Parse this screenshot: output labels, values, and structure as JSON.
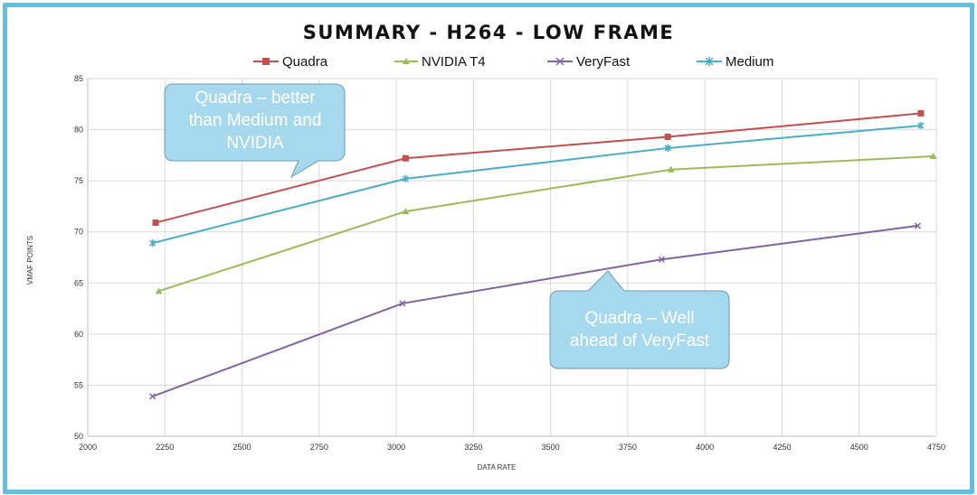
{
  "title": "SUMMARY - H264 - LOW FRAME",
  "colors": {
    "frame": "#62bfe1",
    "callout_fill": "#a7d9ee",
    "callout_stroke": "#6c9cb3",
    "grid": "#d9d9d9"
  },
  "callouts": [
    {
      "lines": [
        "Quadra – better",
        "than Medium  and",
        "NVIDIA"
      ]
    },
    {
      "lines": [
        "Quadra – Well",
        "ahead of VeryFast"
      ]
    }
  ],
  "chart_data": {
    "type": "line",
    "title": "SUMMARY - H264 - LOW FRAME",
    "xlabel": "DATA RATE",
    "ylabel": "VMAF POINTS",
    "xlim": [
      2000,
      4750
    ],
    "ylim": [
      50,
      85
    ],
    "x_ticks": [
      2000,
      2250,
      2500,
      2750,
      3000,
      3250,
      3500,
      3750,
      4000,
      4250,
      4500,
      4750
    ],
    "y_ticks": [
      50,
      55,
      60,
      65,
      70,
      75,
      80,
      85
    ],
    "grid": true,
    "legend_position": "top",
    "series": [
      {
        "name": "Quadra",
        "color": "#c0504d",
        "marker": "square",
        "x": [
          2220,
          3030,
          3880,
          4700
        ],
        "y": [
          70.9,
          77.2,
          79.3,
          81.6
        ]
      },
      {
        "name": "NVIDIA T4",
        "color": "#9bbb59",
        "marker": "triangle",
        "x": [
          2230,
          3030,
          3890,
          4740
        ],
        "y": [
          64.2,
          72.0,
          76.1,
          77.4
        ]
      },
      {
        "name": "VeryFast",
        "color": "#8064a2",
        "marker": "x",
        "x": [
          2210,
          3020,
          3860,
          4690
        ],
        "y": [
          53.9,
          63.0,
          67.3,
          70.6
        ]
      },
      {
        "name": "Medium",
        "color": "#4bacc6",
        "marker": "star",
        "x": [
          2210,
          3030,
          3880,
          4700
        ],
        "y": [
          68.9,
          75.2,
          78.2,
          80.4
        ]
      }
    ]
  }
}
